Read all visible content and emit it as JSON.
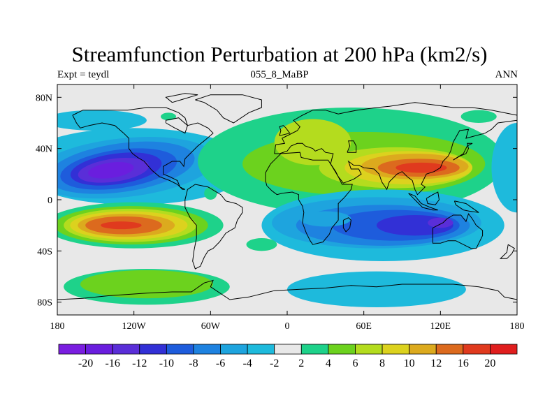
{
  "title": "Streamfunction Perturbation at 200 hPa (km2/s)",
  "left_label": "Expt = teydl",
  "center_label": "055_8_MaBP",
  "right_label": "ANN",
  "map": {
    "projection": "cylindrical-equidistant",
    "lon_range": [
      -180,
      180
    ],
    "lat_range": [
      -90,
      90
    ],
    "background_color": "#e8e8e8",
    "coastline_color": "#000000",
    "lon_ticks": [
      {
        "value": -180,
        "label": "180"
      },
      {
        "value": -120,
        "label": "120W"
      },
      {
        "value": -60,
        "label": "60W"
      },
      {
        "value": 0,
        "label": "0"
      },
      {
        "value": 60,
        "label": "60E"
      },
      {
        "value": 120,
        "label": "120E"
      },
      {
        "value": 180,
        "label": "180"
      }
    ],
    "lat_ticks": [
      {
        "value": 80,
        "label": "80N"
      },
      {
        "value": 40,
        "label": "40N"
      },
      {
        "value": 0,
        "label": "0"
      },
      {
        "value": -40,
        "label": "40S"
      },
      {
        "value": -80,
        "label": "80S"
      }
    ],
    "field_centers": [
      {
        "name": "north-pacific-low",
        "lon": -130,
        "lat": 25,
        "value": -20
      },
      {
        "name": "south-pacific-high",
        "lon": -120,
        "lat": -20,
        "value": 16
      },
      {
        "name": "asia-high",
        "lon": 100,
        "lat": 25,
        "value": 14
      },
      {
        "name": "indian-ocean-low",
        "lon": 90,
        "lat": -20,
        "value": -12
      },
      {
        "name": "south-atlantic-low",
        "lon": 20,
        "lat": -15,
        "value": -8
      },
      {
        "name": "southern-pacific-high",
        "lon": -120,
        "lat": -65,
        "value": 6
      },
      {
        "name": "africa-high",
        "lon": 20,
        "lat": 35,
        "value": 6
      }
    ]
  },
  "colorbar": {
    "colors": [
      "#7a1ee0",
      "#6a1ede",
      "#5a2ed8",
      "#3230d6",
      "#1e5cdc",
      "#1e82e0",
      "#1ea4de",
      "#1ebadc",
      "#e8e8e8",
      "#1ed28a",
      "#6cd21e",
      "#b4dc1e",
      "#dcd21e",
      "#dcaa1e",
      "#dc6a1e",
      "#e03a1e",
      "#e01e1e"
    ],
    "labels": [
      "-20",
      "-16",
      "-12",
      "-10",
      "-8",
      "-6",
      "-4",
      "-2",
      "2",
      "4",
      "6",
      "8",
      "10",
      "12",
      "16",
      "20"
    ]
  }
}
